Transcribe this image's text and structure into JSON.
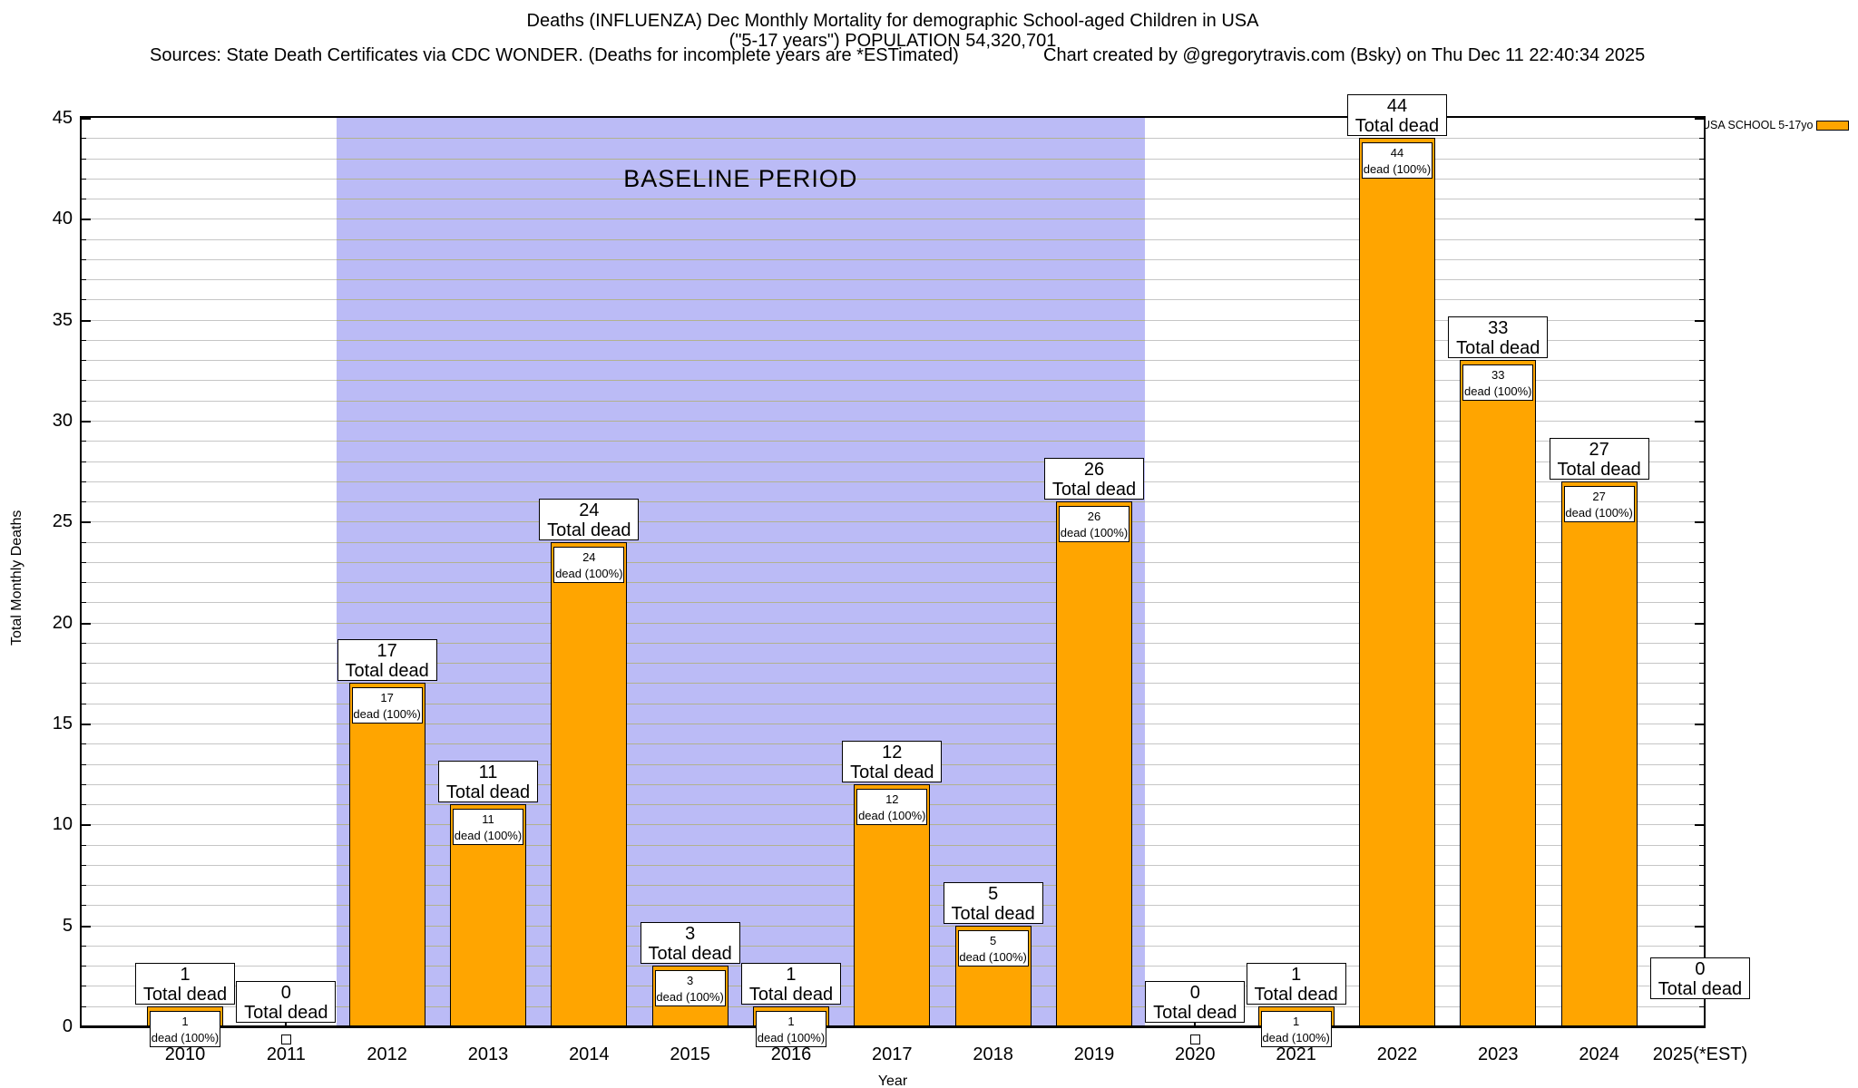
{
  "title": {
    "line1": "Deaths (INFLUENZA) Dec Monthly Mortality for demographic School-aged Children in USA",
    "line2": "(\"5-17 years\") POPULATION 54,320,701",
    "sources": "Sources: State Death Certificates via CDC WONDER. (Deaths for incomplete years are *ESTimated)",
    "credit": "Chart created by @gregorytravis.com (Bsky) on Thu Dec 11 22:40:34 2025"
  },
  "legend": {
    "label": "USA SCHOOL 5-17yo",
    "swatch_color": "#FFA500"
  },
  "annotations": {
    "total_label": "Total dead",
    "dead_label": "dead (100%)",
    "baseline_label": "BASELINE PERIOD"
  },
  "axes": {
    "y_title": "Total Monthly Deaths",
    "x_title": "Year",
    "y_ticks": [
      0,
      5,
      10,
      15,
      20,
      25,
      30,
      35,
      40,
      45
    ]
  },
  "colors": {
    "bar": "#FFA500",
    "baseline_region": "#bbbbf6",
    "gridline": "#c6c6c6",
    "gridline_over_baseline": "#b2b28e"
  },
  "chart_data": {
    "type": "bar",
    "title": "Deaths (INFLUENZA) Dec Monthly Mortality for demographic School-aged Children in USA (\"5-17 years\") POPULATION 54,320,701",
    "series_name": "USA SCHOOL 5-17yo",
    "categories": [
      "2010",
      "2011",
      "2012",
      "2013",
      "2014",
      "2015",
      "2016",
      "2017",
      "2018",
      "2019",
      "2020",
      "2021",
      "2022",
      "2023",
      "2024",
      "2025(*EST)"
    ],
    "values": [
      1,
      0,
      17,
      11,
      24,
      3,
      1,
      12,
      5,
      26,
      0,
      1,
      44,
      33,
      27,
      0
    ],
    "estimated_categories": [
      "2025(*EST)"
    ],
    "xlabel": "Year",
    "ylabel": "Total Monthly Deaths",
    "ylim": [
      0,
      45
    ],
    "grid": true,
    "legend_position": "top-right",
    "baseline_period": {
      "label": "BASELINE PERIOD",
      "from": "2012",
      "to": "2019"
    }
  }
}
